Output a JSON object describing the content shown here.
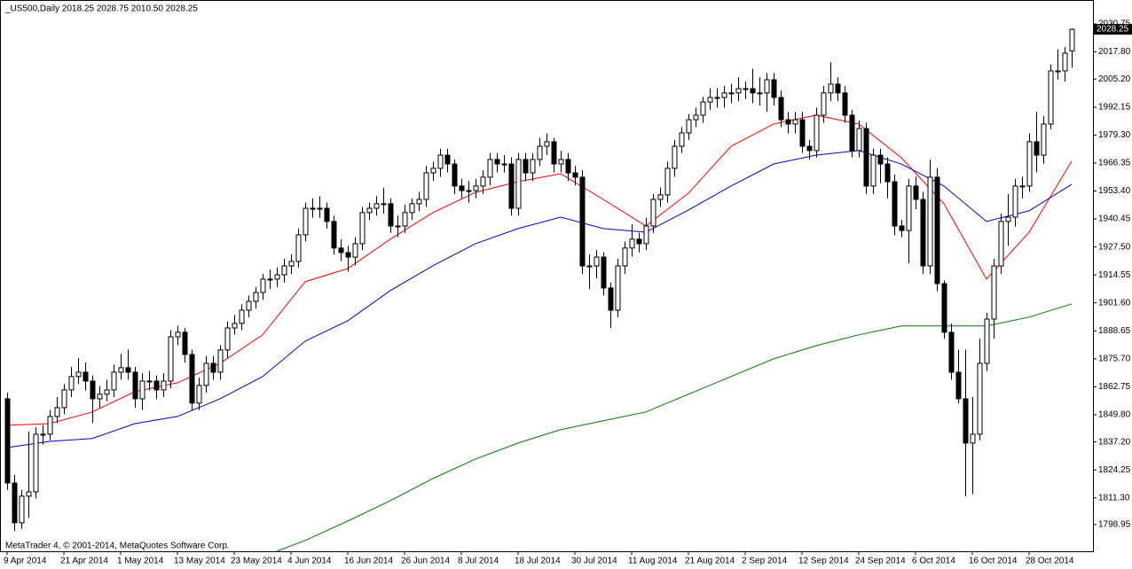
{
  "chart_data": {
    "type": "candlestick",
    "title": "_US500,Daily  2018.25 2028.75 2010.50 2028.25",
    "footer": "MetaTrader 4, © 2001-2014, MetaQuotes Software Corp.",
    "categories": [
      "9 Apr 2014",
      null,
      null,
      null,
      null,
      null,
      null,
      null,
      "21 Apr 2014",
      null,
      null,
      null,
      null,
      null,
      null,
      null,
      "1 May 2014",
      null,
      null,
      null,
      null,
      null,
      null,
      null,
      "13 May 2014",
      null,
      null,
      null,
      null,
      null,
      null,
      null,
      "23 May 2014",
      null,
      null,
      null,
      null,
      null,
      null,
      null,
      "4 Jun 2014",
      null,
      null,
      null,
      null,
      null,
      null,
      null,
      "16 Jun 2014",
      null,
      null,
      null,
      null,
      null,
      null,
      null,
      "26 Jun 2014",
      null,
      null,
      null,
      null,
      null,
      null,
      null,
      "8 Jul 2014",
      null,
      null,
      null,
      null,
      null,
      null,
      null,
      "18 Jul 2014",
      null,
      null,
      null,
      null,
      null,
      null,
      null,
      "30 Jul 2014",
      null,
      null,
      null,
      null,
      null,
      null,
      null,
      "11 Aug 2014",
      null,
      null,
      null,
      null,
      null,
      null,
      null,
      "21 Aug 2014",
      null,
      null,
      null,
      null,
      null,
      null,
      null,
      "2 Sep 2014",
      null,
      null,
      null,
      null,
      null,
      null,
      null,
      "12 Sep 2014",
      null,
      null,
      null,
      null,
      null,
      null,
      null,
      "24 Sep 2014",
      null,
      null,
      null,
      null,
      null,
      null,
      null,
      "6 Oct 2014",
      null,
      null,
      null,
      null,
      null,
      null,
      null,
      "16 Oct 2014",
      null,
      null,
      null,
      null,
      null,
      null,
      null,
      "28 Oct 2014",
      null,
      null,
      null,
      null,
      null,
      null
    ],
    "open": [
      1857.2,
      1818.2,
      1799.8,
      1812.1,
      1814.1,
      1840.8,
      1840.8,
      1849.0,
      1853.1,
      1861.3,
      1867.5,
      1869.5,
      1865.4,
      1857.2,
      1859.3,
      1861.3,
      1869.5,
      1871.6,
      1869.5,
      1857.2,
      1865.4,
      1865.4,
      1861.3,
      1865.4,
      1885.9,
      1888.0,
      1877.7,
      1855.2,
      1863.4,
      1873.6,
      1869.5,
      1879.8,
      1890.0,
      1892.1,
      1898.2,
      1902.3,
      1906.4,
      1912.6,
      1912.6,
      1914.6,
      1918.7,
      1920.8,
      1933.1,
      1945.4,
      1945.4,
      1945.4,
      1939.3,
      1927.0,
      1924.9,
      1922.8,
      1929.0,
      1943.4,
      1945.4,
      1947.5,
      1947.5,
      1937.2,
      1937.2,
      1943.4,
      1947.5,
      1949.5,
      1961.8,
      1963.9,
      1970.0,
      1965.9,
      1955.7,
      1953.6,
      1953.6,
      1955.7,
      1959.8,
      1968.0,
      1965.9,
      1965.9,
      1945.4,
      1968.0,
      1961.8,
      1968.0,
      1974.1,
      1976.2,
      1965.9,
      1968.0,
      1961.8,
      1959.8,
      1918.7,
      1918.7,
      1922.8,
      1908.5,
      1898.2,
      1918.7,
      1927.0,
      1931.1,
      1929.0,
      1937.2,
      1949.5,
      1951.6,
      1963.9,
      1974.1,
      1980.3,
      1986.4,
      1988.5,
      1994.6,
      1996.7,
      1996.7,
      1998.8,
      1998.8,
      2000.8,
      2000.8,
      1998.8,
      1998.8,
      2004.9,
      1996.7,
      1986.4,
      1984.4,
      1986.4,
      1974.1,
      1972.1,
      1988.5,
      1998.8,
      2002.9,
      1998.8,
      1988.5,
      1972.1,
      1982.3,
      1955.7,
      1970.0,
      1965.9,
      1957.7,
      1937.2,
      1935.1,
      1955.7,
      1949.5,
      1918.7,
      1959.8,
      1910.5,
      1888.0,
      1869.5,
      1857.2,
      1836.7,
      1840.8,
      1873.6,
      1894.1,
      1918.7,
      1939.3,
      1941.3,
      1955.7,
      1955.7,
      1976.2,
      1970.0,
      1984.4,
      2009.0,
      2009.0,
      2018.25
    ],
    "high": [
      1860,
      1822,
      1815,
      1842,
      1844,
      1845,
      1852,
      1858,
      1864,
      1872,
      1876,
      1874,
      1868,
      1863,
      1866,
      1873,
      1878,
      1880,
      1872,
      1869,
      1870,
      1868,
      1869,
      1889,
      1891,
      1890,
      1880,
      1867,
      1877,
      1877,
      1882,
      1893,
      1896,
      1901,
      1905,
      1909,
      1915,
      1917,
      1918,
      1922,
      1924,
      1936,
      1948,
      1950,
      1951,
      1948,
      1942,
      1931,
      1928,
      1932,
      1946,
      1948,
      1951,
      1955,
      1950,
      1942,
      1947,
      1950,
      1953,
      1965,
      1967,
      1973,
      1973,
      1968,
      1959,
      1958,
      1959,
      1963,
      1971,
      1971,
      1970,
      1969,
      1971,
      1971,
      1971,
      1978,
      1980,
      1978,
      1972,
      1971,
      1965,
      1963,
      1924,
      1926,
      1925,
      1911,
      1922,
      1930,
      1938,
      1934,
      1941,
      1952,
      1955,
      1967,
      1977,
      1983,
      1989,
      1992,
      1997,
      2001,
      2001,
      2002,
      2003,
      2006,
      2004,
      2010,
      2006,
      2008,
      2008,
      2000,
      1990,
      1990,
      1990,
      1977,
      1992,
      2002,
      2013,
      2006,
      2002,
      1991,
      1986,
      1985,
      1973,
      1973,
      1969,
      1961,
      1940,
      1959,
      1960,
      1953,
      1968,
      1964,
      1912,
      1892,
      1880,
      1880,
      1858,
      1885,
      1897,
      1922,
      1943,
      1952,
      1959,
      1960,
      1980,
      1990,
      1988,
      2012,
      2019,
      2020,
      2028.75
    ],
    "low": [
      1815,
      1796,
      1797,
      1802,
      1811,
      1836,
      1838,
      1846,
      1850,
      1858,
      1864,
      1861,
      1846,
      1853,
      1856,
      1858,
      1866,
      1866,
      1853,
      1852,
      1861,
      1857,
      1858,
      1862,
      1882,
      1874,
      1852,
      1852,
      1860,
      1866,
      1866,
      1876,
      1887,
      1889,
      1895,
      1899,
      1903,
      1908,
      1909,
      1911,
      1915,
      1918,
      1930,
      1941,
      1941,
      1936,
      1924,
      1921,
      1916,
      1919,
      1926,
      1940,
      1942,
      1943,
      1934,
      1932,
      1934,
      1940,
      1944,
      1946,
      1958,
      1960,
      1962,
      1952,
      1950,
      1948,
      1950,
      1952,
      1956,
      1962,
      1962,
      1942,
      1942,
      1958,
      1958,
      1965,
      1970,
      1962,
      1962,
      1958,
      1956,
      1915,
      1908,
      1913,
      1905,
      1890,
      1895,
      1915,
      1923,
      1925,
      1926,
      1934,
      1946,
      1948,
      1960,
      1971,
      1977,
      1983,
      1985,
      1991,
      1992,
      1992,
      1994,
      1995,
      1996,
      1994,
      1993,
      1990,
      1993,
      1983,
      1980,
      1980,
      1971,
      1968,
      1969,
      1985,
      1995,
      1995,
      1985,
      1969,
      1969,
      1952,
      1952,
      1957,
      1950,
      1933,
      1932,
      1920,
      1945,
      1915,
      1915,
      1907,
      1885,
      1866,
      1855,
      1812,
      1813,
      1838,
      1870,
      1885,
      1915,
      1928,
      1937,
      1950,
      1953,
      1962,
      1966,
      1982,
      2005,
      2004,
      2010.5
    ],
    "close": [
      1818.2,
      1799.8,
      1812.1,
      1814.1,
      1840.8,
      1840.8,
      1849.0,
      1853.1,
      1861.3,
      1867.5,
      1869.5,
      1865.4,
      1857.2,
      1859.3,
      1861.3,
      1869.5,
      1871.6,
      1869.5,
      1857.2,
      1865.4,
      1865.4,
      1861.3,
      1865.4,
      1885.9,
      1888.0,
      1877.7,
      1855.2,
      1863.4,
      1873.6,
      1869.5,
      1879.8,
      1890.0,
      1892.1,
      1898.2,
      1902.3,
      1906.4,
      1912.6,
      1912.6,
      1914.6,
      1918.7,
      1920.8,
      1933.1,
      1945.4,
      1945.4,
      1945.4,
      1939.3,
      1927.0,
      1924.9,
      1922.8,
      1929.0,
      1943.4,
      1945.4,
      1947.5,
      1947.5,
      1937.2,
      1937.2,
      1943.4,
      1947.5,
      1949.5,
      1961.8,
      1963.9,
      1970.0,
      1965.9,
      1955.7,
      1953.6,
      1953.6,
      1955.7,
      1959.8,
      1968.0,
      1965.9,
      1965.9,
      1945.4,
      1968.0,
      1961.8,
      1968.0,
      1974.1,
      1976.2,
      1965.9,
      1968.0,
      1961.8,
      1959.8,
      1918.7,
      1918.7,
      1922.8,
      1908.5,
      1898.2,
      1918.7,
      1927.0,
      1931.1,
      1929.0,
      1937.2,
      1949.5,
      1951.6,
      1963.9,
      1974.1,
      1980.3,
      1986.4,
      1988.5,
      1994.6,
      1996.7,
      1996.7,
      1998.8,
      1998.8,
      2000.8,
      2000.8,
      1998.8,
      1998.8,
      2004.9,
      1996.7,
      1986.4,
      1984.4,
      1986.4,
      1974.1,
      1972.1,
      1988.5,
      1998.8,
      2002.9,
      1998.8,
      1988.5,
      1972.1,
      1982.3,
      1955.7,
      1970.0,
      1965.9,
      1957.7,
      1937.2,
      1935.1,
      1955.7,
      1949.5,
      1918.7,
      1959.8,
      1910.5,
      1888.0,
      1869.5,
      1857.2,
      1836.7,
      1840.8,
      1873.6,
      1894.1,
      1918.7,
      1939.3,
      1941.3,
      1955.7,
      1955.7,
      1976.2,
      1970.0,
      1984.4,
      2009.0,
      2009.0,
      2017.2,
      2028.25
    ],
    "up_color": "#ffffff",
    "down_color": "#000000",
    "wick_color": "#000000",
    "lines": [
      {
        "color": "#ff0000",
        "x": [
          0,
          6,
          12,
          18,
          24,
          30,
          36,
          42,
          48,
          54,
          60,
          66,
          72,
          78,
          84,
          90,
          96,
          102,
          108,
          114,
          120,
          126,
          132,
          138,
          144,
          150
        ],
        "values": [
          1844.9,
          1845.7,
          1851.1,
          1860.5,
          1864.6,
          1873.6,
          1886.8,
          1911.4,
          1917.5,
          1931.1,
          1943.4,
          1952.8,
          1957.7,
          1961.4,
          1949.5,
          1937.2,
          1952.4,
          1974.1,
          1984.4,
          1988.5,
          1984.4,
          1968.8,
          1947.5,
          1912.6,
          1934.3,
          1967.2
        ]
      },
      {
        "color": "#0000cc",
        "x": [
          0,
          6,
          12,
          18,
          24,
          30,
          36,
          42,
          48,
          54,
          60,
          66,
          72,
          78,
          84,
          90,
          96,
          102,
          108,
          114,
          120,
          126,
          132,
          138,
          144,
          150
        ],
        "values": [
          1834.6,
          1837.5,
          1838.8,
          1845.7,
          1849.0,
          1857.2,
          1867.5,
          1883.9,
          1893.3,
          1907.3,
          1918.8,
          1929.0,
          1936.0,
          1941.3,
          1936.0,
          1934.3,
          1944.6,
          1955.7,
          1965.9,
          1970.0,
          1972.1,
          1965.9,
          1955.7,
          1939.3,
          1944.2,
          1956.5
        ]
      },
      {
        "color": "#007700",
        "x": [
          38,
          42,
          48,
          54,
          60,
          66,
          72,
          78,
          84,
          90,
          96,
          102,
          108,
          114,
          120,
          126,
          132,
          138,
          144,
          150
        ],
        "values": [
          1786.6,
          1791.6,
          1800.6,
          1810.0,
          1820.3,
          1829.3,
          1836.7,
          1842.9,
          1847.0,
          1851.1,
          1859.3,
          1867.5,
          1875.7,
          1881.8,
          1886.8,
          1890.9,
          1890.9,
          1890.9,
          1895.0,
          1901.1
        ]
      }
    ],
    "ylim": [
      1786.6,
      2041.0
    ],
    "yticks": [
      2030.75,
      {
        "value": 2017.8,
        "label": "2017.80"
      },
      {
        "value": 2005.2,
        "label": "2005.20"
      },
      1992.15,
      {
        "value": 1979.3,
        "label": "1979.30"
      },
      1966.35,
      {
        "value": 1953.4,
        "label": "1953.40"
      },
      1940.45,
      {
        "value": 1927.5,
        "label": "1927.50"
      },
      1914.55,
      {
        "value": 1901.6,
        "label": "1901.60"
      },
      1888.65,
      {
        "value": 1875.7,
        "label": "1875.70"
      },
      1862.75,
      {
        "value": 1849.8,
        "label": "1849.80"
      },
      {
        "value": 1837.2,
        "label": "1837.20"
      },
      1824.25,
      {
        "value": 1811.3,
        "label": "1811.30"
      },
      1798.95
    ],
    "grid": false
  }
}
